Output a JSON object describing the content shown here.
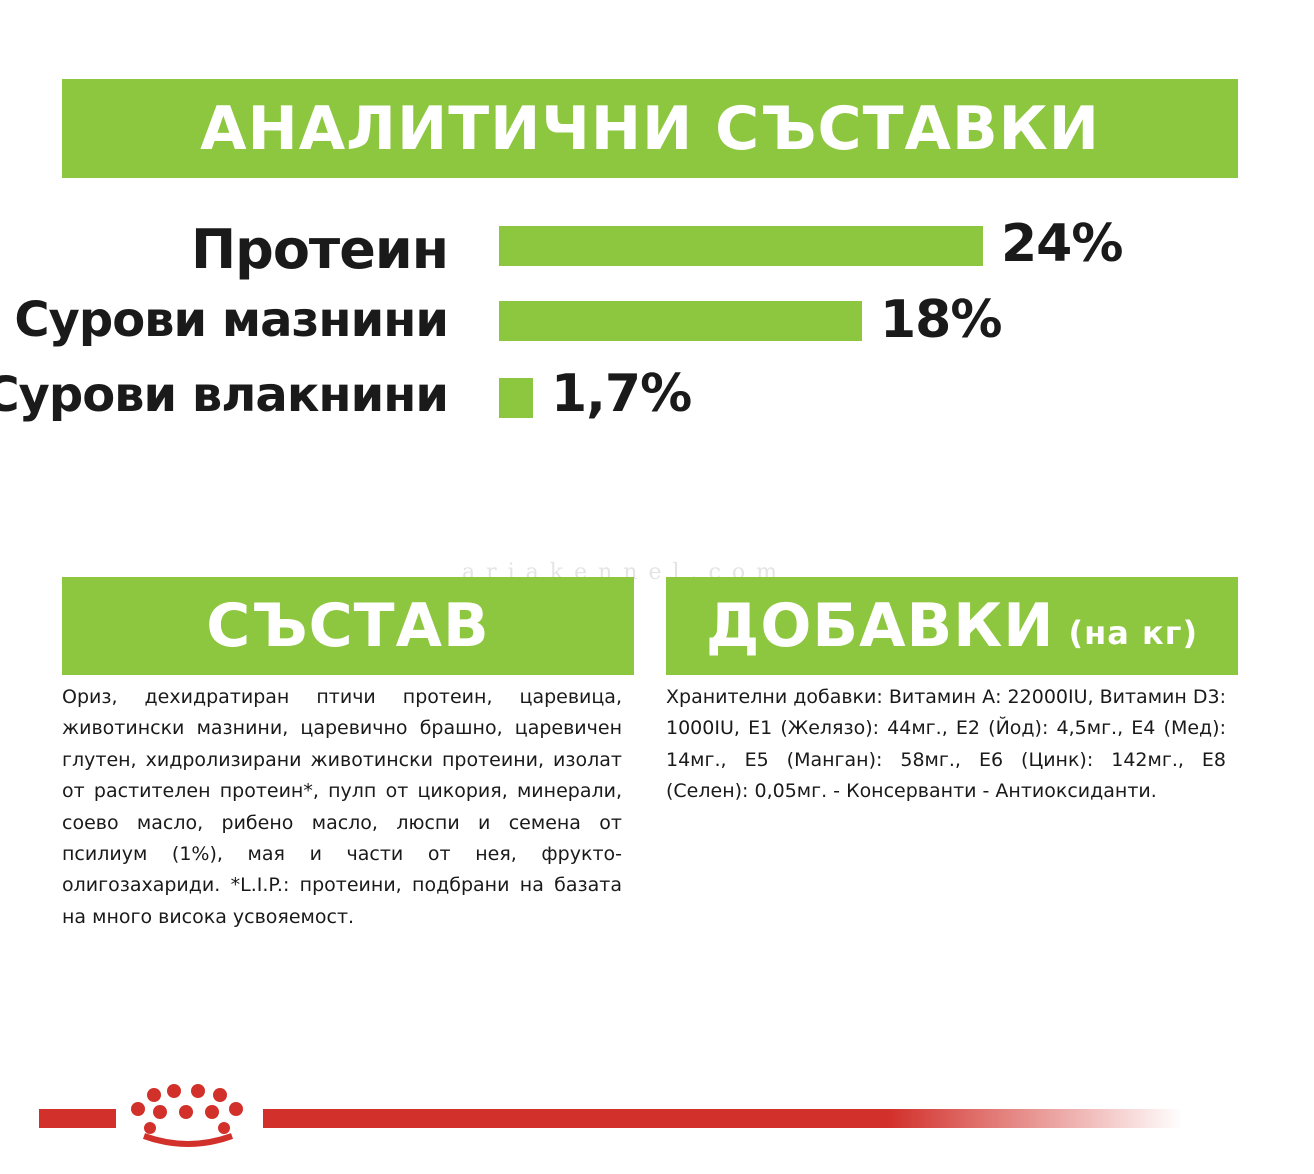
{
  "headers": {
    "analytical": "АНАЛИТИЧНИ СЪСТАВКИ",
    "composition": "СЪСТАВ",
    "additives": "ДОБАВКИ",
    "additives_suffix": "(на кг)"
  },
  "nutrients": [
    {
      "label": "Протеин",
      "value": "24%",
      "percent": 24
    },
    {
      "label": "Сурови мазнини",
      "value": "18%",
      "percent": 18
    },
    {
      "label": "Сурови влакнини",
      "value": "1,7%",
      "percent": 1.7
    }
  ],
  "composition_text": "Ориз, дехидратиран птичи протеин, царевица, животински мазнини, царевично брашно, царевичен глутен, хидролизирани животински протеини, изолат от растителен протеин*, пулп от цикория, минерали, соево масло, рибено масло, люспи и семена от псилиум (1%), мая и части от нея, фрукто-олигозахариди. *L.I.P.: протеини, подбрани на базата на много висока усвояемост.",
  "additives_text": "Хранителни добавки: Витамин А: 22000IU, Витамин D3: 1000IU, Е1 (Желязо): 44мг., Е2 (Йод): 4,5мг., Е4 (Мед): 14мг., Е5 (Манган): 58мг., Е6 (Цинк): 142мг., Е8 (Селен): 0,05мг. - Консерванти - Антиоксиданти.",
  "watermark": "ariakennel.com",
  "colors": {
    "accent": "#8dc63f",
    "brand_red": "#d2302b",
    "text": "#1a1a1a"
  },
  "icons": {
    "logo": "royal-crown-logo"
  }
}
